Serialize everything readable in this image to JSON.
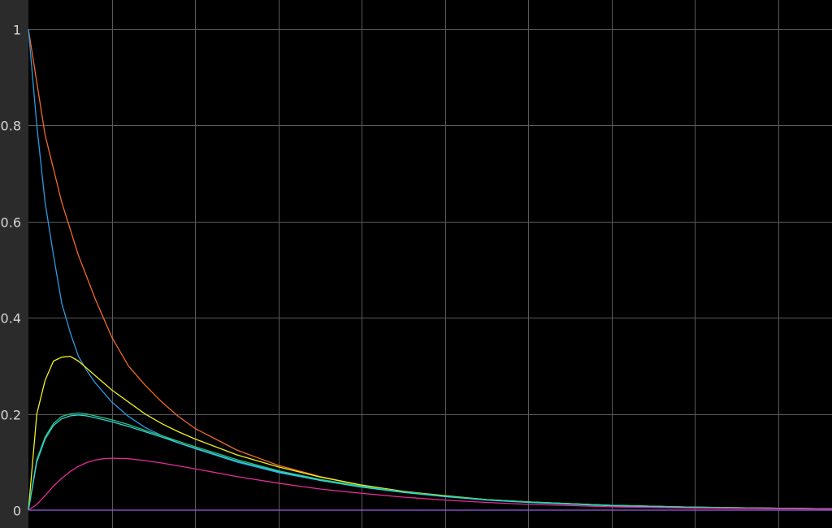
{
  "chart_data": {
    "type": "line",
    "title": "",
    "xlabel": "",
    "ylabel": "",
    "xlim": [
      0,
      100
    ],
    "ylim": [
      0,
      1
    ],
    "grid": true,
    "y_ticks": [
      {
        "value": 0,
        "label": "0"
      },
      {
        "value": 0.2,
        "label": "0.2"
      },
      {
        "value": 0.4,
        "label": "0.4"
      },
      {
        "value": 0.6,
        "label": "0.6"
      },
      {
        "value": 0.8,
        "label": "0.8"
      },
      {
        "value": 1,
        "label": "1"
      }
    ],
    "x_gridlines": [
      10,
      20,
      30,
      40,
      50,
      60,
      70,
      80,
      90
    ],
    "colors": {
      "background": "#000000",
      "axis_panel": "#2b2b2b",
      "grid": "#5a5a5a",
      "tick_text": "#d6d6d6"
    },
    "series": [
      {
        "color": "#f26b2a",
        "x": [
          0,
          2,
          4,
          6,
          8,
          10,
          12,
          14,
          16,
          18,
          20,
          25,
          30,
          35,
          40,
          45,
          50,
          55,
          60,
          70,
          80,
          90,
          100
        ],
        "values": [
          1.0,
          0.78,
          0.64,
          0.53,
          0.44,
          0.36,
          0.3,
          0.26,
          0.225,
          0.195,
          0.17,
          0.125,
          0.093,
          0.07,
          0.052,
          0.039,
          0.029,
          0.022,
          0.017,
          0.01,
          0.006,
          0.004,
          0.002
        ]
      },
      {
        "color": "#2c9be0",
        "x": [
          0,
          1,
          2,
          3,
          4,
          5,
          6,
          7,
          8,
          10,
          12,
          14,
          16,
          18,
          20,
          25,
          30,
          35,
          40,
          45,
          50,
          55,
          60,
          70,
          80,
          90,
          100
        ],
        "values": [
          1.0,
          0.8,
          0.64,
          0.53,
          0.43,
          0.37,
          0.32,
          0.29,
          0.265,
          0.225,
          0.195,
          0.172,
          0.155,
          0.14,
          0.128,
          0.1,
          0.078,
          0.062,
          0.048,
          0.037,
          0.029,
          0.022,
          0.017,
          0.01,
          0.006,
          0.004,
          0.002
        ]
      },
      {
        "color": "#f0f01e",
        "x": [
          0,
          1,
          2,
          3,
          4,
          5,
          6,
          7,
          8,
          10,
          12,
          14,
          16,
          18,
          20,
          25,
          30,
          35,
          40,
          45,
          50,
          55,
          60,
          70,
          80,
          90,
          100
        ],
        "values": [
          0.0,
          0.2,
          0.27,
          0.31,
          0.318,
          0.32,
          0.31,
          0.295,
          0.28,
          0.25,
          0.225,
          0.2,
          0.18,
          0.163,
          0.148,
          0.115,
          0.09,
          0.069,
          0.052,
          0.039,
          0.03,
          0.022,
          0.017,
          0.01,
          0.006,
          0.004,
          0.002
        ]
      },
      {
        "color": "#2ec27e",
        "x": [
          0,
          1,
          2,
          3,
          4,
          5,
          6,
          7,
          8,
          10,
          12,
          14,
          16,
          18,
          20,
          25,
          30,
          35,
          40,
          45,
          50,
          55,
          60,
          70,
          80,
          90,
          100
        ],
        "values": [
          0.0,
          0.105,
          0.152,
          0.18,
          0.195,
          0.2,
          0.202,
          0.2,
          0.196,
          0.188,
          0.178,
          0.166,
          0.155,
          0.143,
          0.132,
          0.105,
          0.082,
          0.064,
          0.05,
          0.038,
          0.029,
          0.022,
          0.017,
          0.01,
          0.006,
          0.004,
          0.002
        ]
      },
      {
        "color": "#2fd6d6",
        "x": [
          0,
          1,
          2,
          3,
          4,
          5,
          6,
          7,
          8,
          10,
          12,
          14,
          16,
          18,
          20,
          25,
          30,
          35,
          40,
          45,
          50,
          55,
          60,
          70,
          80,
          90,
          100
        ],
        "values": [
          0.0,
          0.1,
          0.148,
          0.176,
          0.19,
          0.196,
          0.198,
          0.196,
          0.192,
          0.184,
          0.174,
          0.163,
          0.152,
          0.14,
          0.129,
          0.102,
          0.08,
          0.062,
          0.048,
          0.037,
          0.028,
          0.021,
          0.016,
          0.009,
          0.005,
          0.003,
          0.002
        ]
      },
      {
        "color": "#e42b9a",
        "x": [
          0,
          1,
          2,
          3,
          4,
          5,
          6,
          7,
          8,
          9,
          10,
          12,
          14,
          16,
          18,
          20,
          25,
          30,
          35,
          40,
          45,
          50,
          55,
          60,
          70,
          80,
          90,
          100
        ],
        "values": [
          0.0,
          0.012,
          0.03,
          0.05,
          0.066,
          0.08,
          0.091,
          0.099,
          0.104,
          0.107,
          0.108,
          0.107,
          0.103,
          0.098,
          0.092,
          0.086,
          0.07,
          0.056,
          0.044,
          0.035,
          0.027,
          0.021,
          0.016,
          0.012,
          0.007,
          0.004,
          0.003,
          0.002
        ]
      },
      {
        "color": "#9b59e6",
        "x": [
          0,
          100
        ],
        "values": [
          0.0,
          0.0
        ]
      }
    ]
  }
}
